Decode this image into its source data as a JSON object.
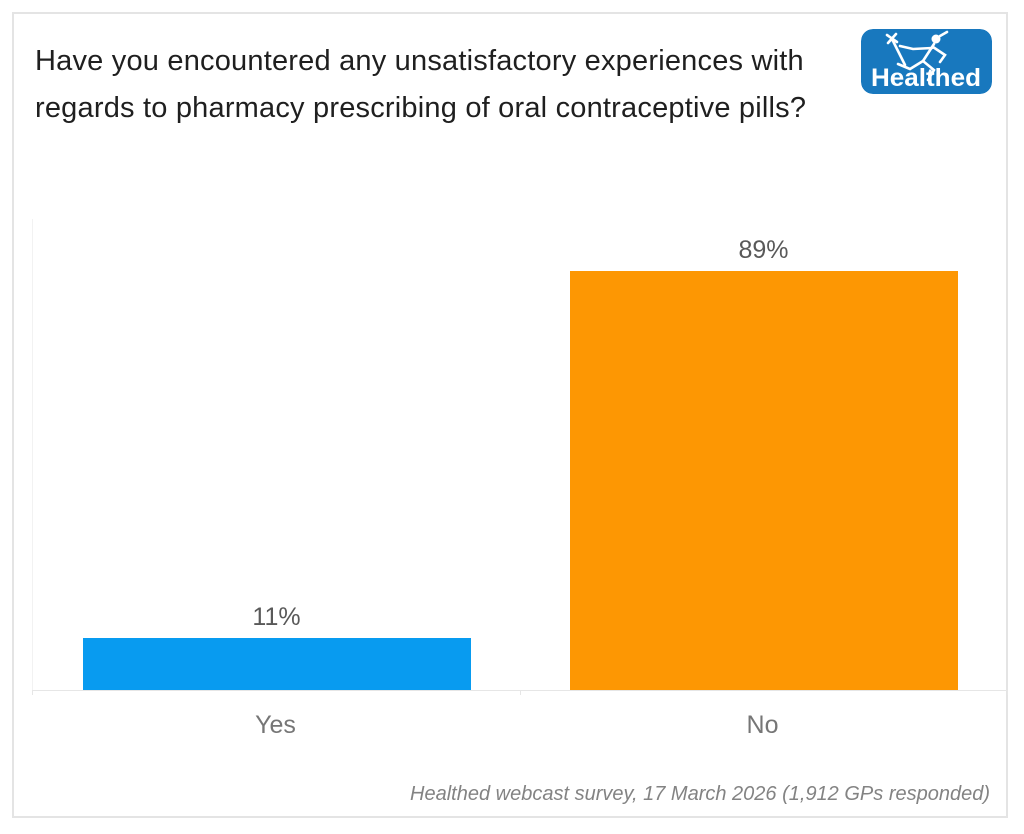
{
  "page": {
    "title": "Have you encountered any unsatisfactory experiences with regards to pharmacy prescribing of oral contraceptive pills?",
    "footer": "Healthed webcast survey, 17 March 2026 (1,912 GPs responded)"
  },
  "logo": {
    "brand": "Healthed",
    "icon": "hermes-caduceus-runner-icon",
    "bg_color": "#1878BE",
    "text_color": "#FFFFFF"
  },
  "chart_data": {
    "type": "bar",
    "title": "Have you encountered any unsatisfactory experiences with regards to pharmacy prescribing of oral contraceptive pills?",
    "categories": [
      "Yes",
      "No"
    ],
    "values": [
      11,
      89
    ],
    "value_labels": [
      "11%",
      "89%"
    ],
    "bar_colors": [
      "#089BF0",
      "#FD9703"
    ],
    "ylim": [
      0,
      100
    ],
    "xlabel": "",
    "ylabel": "",
    "grid": false,
    "legend": false,
    "value_label_color": "#595959",
    "category_label_color": "#767676",
    "axis_line_color": "#E6E6E6"
  }
}
